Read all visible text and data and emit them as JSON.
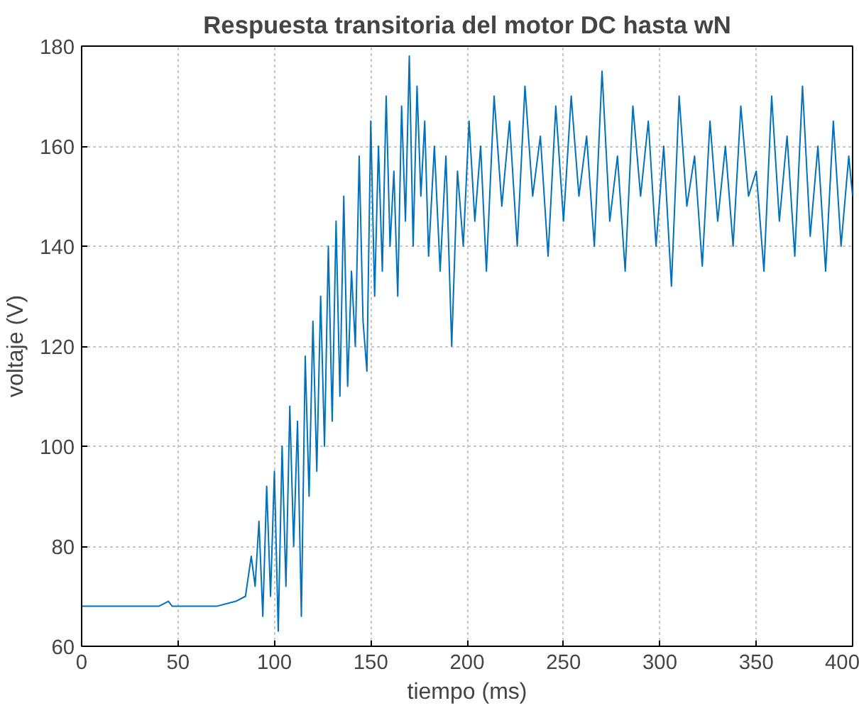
{
  "chart_data": {
    "type": "line",
    "title": "Respuesta transitoria del motor DC hasta wN",
    "xlabel": "tiempo (ms)",
    "ylabel": "voltaje (V)",
    "xlim": [
      0,
      400
    ],
    "xticks": [
      0,
      50,
      100,
      150,
      200,
      250,
      300,
      350,
      400
    ],
    "ylim": [
      60,
      180
    ],
    "yticks": [
      60,
      80,
      100,
      120,
      140,
      160,
      180
    ],
    "grid": true,
    "line_style": "solid",
    "marker": "none",
    "series": [
      {
        "color": "#0072bd",
        "x": [
          0,
          10,
          20,
          30,
          40,
          45,
          47,
          50,
          60,
          70,
          80,
          85,
          88,
          90,
          92,
          94,
          96,
          98,
          100,
          102,
          104,
          106,
          108,
          110,
          112,
          114,
          116,
          118,
          120,
          122,
          124,
          126,
          128,
          130,
          132,
          134,
          136,
          138,
          140,
          142,
          144,
          146,
          148,
          150,
          152,
          154,
          156,
          158,
          160,
          162,
          164,
          166,
          168,
          170,
          172,
          174,
          176,
          178,
          180,
          183,
          186,
          189,
          192,
          195,
          198,
          201,
          204,
          207,
          210,
          214,
          218,
          222,
          226,
          230,
          234,
          238,
          242,
          246,
          250,
          254,
          258,
          262,
          266,
          270,
          274,
          278,
          282,
          286,
          290,
          294,
          298,
          302,
          306,
          310,
          314,
          318,
          322,
          326,
          330,
          334,
          338,
          342,
          346,
          350,
          354,
          358,
          362,
          366,
          370,
          374,
          378,
          382,
          386,
          390,
          394,
          398,
          400
        ],
        "values": [
          68,
          68,
          68,
          68,
          68,
          69,
          68,
          68,
          68,
          68,
          69,
          70,
          78,
          72,
          85,
          66,
          92,
          70,
          95,
          63,
          100,
          72,
          108,
          80,
          105,
          66,
          118,
          90,
          125,
          95,
          130,
          100,
          140,
          105,
          145,
          110,
          150,
          112,
          135,
          120,
          158,
          125,
          115,
          165,
          130,
          160,
          135,
          170,
          140,
          155,
          130,
          168,
          145,
          178,
          140,
          172,
          150,
          165,
          138,
          160,
          135,
          158,
          120,
          155,
          140,
          165,
          145,
          160,
          135,
          170,
          148,
          165,
          140,
          172,
          150,
          162,
          138,
          168,
          145,
          170,
          150,
          162,
          140,
          175,
          145,
          158,
          135,
          168,
          150,
          165,
          140,
          160,
          132,
          170,
          148,
          158,
          136,
          165,
          145,
          160,
          140,
          168,
          150,
          155,
          135,
          170,
          145,
          162,
          138,
          172,
          142,
          160,
          135,
          165,
          140,
          158,
          150
        ]
      }
    ]
  }
}
